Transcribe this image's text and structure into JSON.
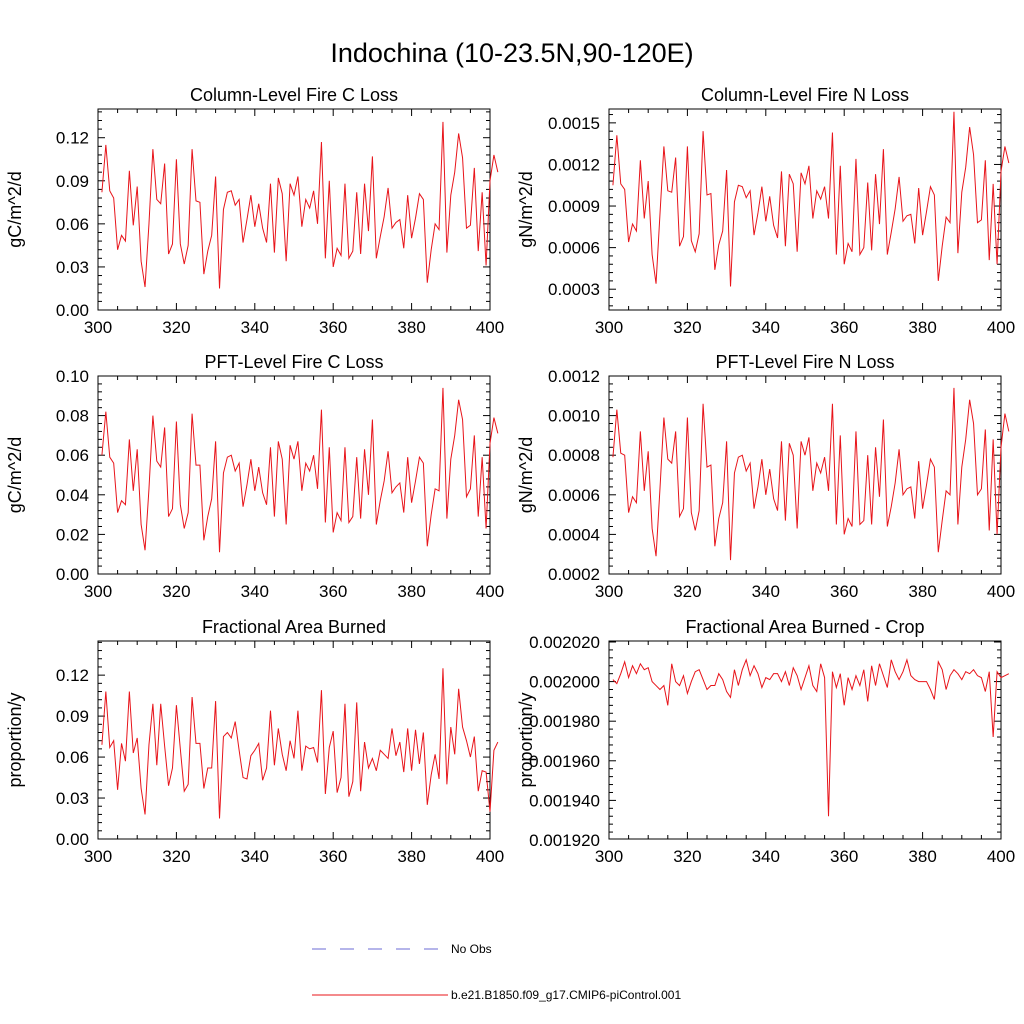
{
  "figure_title": "Indochina (10-23.5N,90-120E)",
  "legend": {
    "obs_label": "No Obs",
    "model_label": "b.e21.B1850.f09_g17.CMIP6-piControl.001",
    "obs_color": "#6b6bd6",
    "model_color": "#e8141a"
  },
  "chart_data": [
    {
      "type": "line",
      "title": "Column-Level Fire C Loss",
      "ylabel": "gC/m^2/d",
      "xlim": [
        300,
        400
      ],
      "ylim": [
        0,
        0.14
      ],
      "xticks": [
        300,
        320,
        340,
        360,
        380,
        400
      ],
      "yticks": [
        0.0,
        0.03,
        0.06,
        0.09,
        0.12
      ],
      "ytick_labels": [
        "0.00",
        "0.03",
        "0.06",
        "0.09",
        "0.12"
      ],
      "x_start": 301,
      "series": [
        {
          "name": "b.e21.B1850.f09_g17.CMIP6-piControl.001",
          "values": [
            0.082,
            0.115,
            0.083,
            0.078,
            0.042,
            0.052,
            0.048,
            0.097,
            0.059,
            0.086,
            0.034,
            0.016,
            0.06,
            0.112,
            0.077,
            0.074,
            0.102,
            0.039,
            0.046,
            0.105,
            0.046,
            0.032,
            0.045,
            0.112,
            0.076,
            0.075,
            0.025,
            0.041,
            0.052,
            0.093,
            0.015,
            0.07,
            0.082,
            0.083,
            0.073,
            0.077,
            0.047,
            0.063,
            0.08,
            0.058,
            0.074,
            0.057,
            0.047,
            0.088,
            0.04,
            0.092,
            0.081,
            0.034,
            0.088,
            0.08,
            0.093,
            0.058,
            0.077,
            0.071,
            0.083,
            0.06,
            0.117,
            0.036,
            0.09,
            0.03,
            0.043,
            0.038,
            0.088,
            0.036,
            0.041,
            0.082,
            0.039,
            0.088,
            0.055,
            0.107,
            0.036,
            0.051,
            0.065,
            0.085,
            0.057,
            0.061,
            0.063,
            0.043,
            0.08,
            0.05,
            0.064,
            0.081,
            0.077,
            0.019,
            0.042,
            0.06,
            0.056,
            0.131,
            0.04,
            0.08,
            0.096,
            0.123,
            0.106,
            0.057,
            0.059,
            0.099,
            0.041,
            0.082,
            0.031,
            0.09,
            0.108,
            0.096
          ]
        }
      ]
    },
    {
      "type": "line",
      "title": "Column-Level Fire N Loss",
      "ylabel": "gN/m^2/d",
      "xlim": [
        300,
        400
      ],
      "ylim": [
        0.00015,
        0.0016
      ],
      "xticks": [
        300,
        320,
        340,
        360,
        380,
        400
      ],
      "yticks": [
        0.0003,
        0.0006,
        0.0009,
        0.0012,
        0.0015
      ],
      "ytick_labels": [
        "0.0003",
        "0.0006",
        "0.0009",
        "0.0012",
        "0.0015"
      ],
      "x_start": 301,
      "series": [
        {
          "name": "b.e21.B1850.f09_g17.CMIP6-piControl.001",
          "values": [
            0.00105,
            0.00141,
            0.00106,
            0.00102,
            0.00064,
            0.00077,
            0.00072,
            0.00123,
            0.00081,
            0.00108,
            0.00055,
            0.00034,
            0.00084,
            0.00133,
            0.00101,
            0.001,
            0.00125,
            0.00061,
            0.00068,
            0.00133,
            0.00065,
            0.00057,
            0.0007,
            0.00144,
            0.00098,
            0.00099,
            0.00044,
            0.00062,
            0.00072,
            0.00116,
            0.00032,
            0.00093,
            0.00105,
            0.00104,
            0.00096,
            0.00101,
            0.00069,
            0.00085,
            0.00104,
            0.00079,
            0.00097,
            0.00076,
            0.00067,
            0.00115,
            0.00061,
            0.00113,
            0.00106,
            0.00057,
            0.00114,
            0.00106,
            0.00119,
            0.00081,
            0.00101,
            0.00095,
            0.00104,
            0.00081,
            0.00143,
            0.00055,
            0.00119,
            0.00048,
            0.00063,
            0.00057,
            0.00124,
            0.00055,
            0.0006,
            0.00107,
            0.00058,
            0.00113,
            0.00077,
            0.00131,
            0.00055,
            0.00071,
            0.00088,
            0.00111,
            0.00079,
            0.00083,
            0.00084,
            0.00063,
            0.00103,
            0.00069,
            0.00086,
            0.00104,
            0.00098,
            0.00036,
            0.00061,
            0.00082,
            0.00078,
            0.00158,
            0.00056,
            0.001,
            0.00118,
            0.00147,
            0.00127,
            0.00078,
            0.0008,
            0.00123,
            0.00051,
            0.00106,
            0.00048,
            0.00115,
            0.00133,
            0.00121
          ]
        }
      ]
    },
    {
      "type": "line",
      "title": "PFT-Level Fire C Loss",
      "ylabel": "gC/m^2/d",
      "xlim": [
        300,
        400
      ],
      "ylim": [
        0,
        0.1
      ],
      "xticks": [
        300,
        320,
        340,
        360,
        380,
        400
      ],
      "yticks": [
        0.0,
        0.02,
        0.04,
        0.06,
        0.08,
        0.1
      ],
      "ytick_labels": [
        "0.00",
        "0.02",
        "0.04",
        "0.06",
        "0.08",
        "0.10"
      ],
      "x_start": 301,
      "series": [
        {
          "name": "b.e21.B1850.f09_g17.CMIP6-piControl.001",
          "values": [
            0.06,
            0.082,
            0.059,
            0.056,
            0.031,
            0.037,
            0.035,
            0.068,
            0.042,
            0.063,
            0.025,
            0.012,
            0.043,
            0.08,
            0.057,
            0.054,
            0.074,
            0.029,
            0.033,
            0.077,
            0.035,
            0.023,
            0.031,
            0.081,
            0.055,
            0.055,
            0.017,
            0.029,
            0.038,
            0.067,
            0.011,
            0.051,
            0.059,
            0.06,
            0.052,
            0.056,
            0.034,
            0.045,
            0.058,
            0.042,
            0.054,
            0.041,
            0.035,
            0.064,
            0.029,
            0.067,
            0.058,
            0.025,
            0.065,
            0.058,
            0.067,
            0.042,
            0.056,
            0.052,
            0.06,
            0.043,
            0.083,
            0.026,
            0.064,
            0.021,
            0.031,
            0.027,
            0.064,
            0.026,
            0.029,
            0.059,
            0.028,
            0.063,
            0.04,
            0.078,
            0.025,
            0.037,
            0.047,
            0.062,
            0.041,
            0.044,
            0.046,
            0.031,
            0.059,
            0.036,
            0.047,
            0.059,
            0.056,
            0.014,
            0.03,
            0.043,
            0.042,
            0.094,
            0.028,
            0.058,
            0.07,
            0.088,
            0.078,
            0.039,
            0.043,
            0.07,
            0.029,
            0.059,
            0.023,
            0.066,
            0.079,
            0.071
          ]
        }
      ]
    },
    {
      "type": "line",
      "title": "PFT-Level Fire N Loss",
      "ylabel": "gN/m^2/d",
      "xlim": [
        300,
        400
      ],
      "ylim": [
        0.0002,
        0.0012
      ],
      "xticks": [
        300,
        320,
        340,
        360,
        380,
        400
      ],
      "yticks": [
        0.0002,
        0.0004,
        0.0006,
        0.0008,
        0.001,
        0.0012
      ],
      "ytick_labels": [
        "0.0002",
        "0.0004",
        "0.0006",
        "0.0008",
        "0.0010",
        "0.0012"
      ],
      "x_start": 301,
      "series": [
        {
          "name": "b.e21.B1850.f09_g17.CMIP6-piControl.001",
          "values": [
            0.00079,
            0.00103,
            0.00081,
            0.0008,
            0.00051,
            0.00059,
            0.00056,
            0.00092,
            0.00062,
            0.00082,
            0.00043,
            0.00029,
            0.00063,
            0.00099,
            0.00078,
            0.00076,
            0.00092,
            0.00049,
            0.00053,
            0.00099,
            0.00051,
            0.00042,
            0.00052,
            0.00106,
            0.00074,
            0.00075,
            0.00034,
            0.00048,
            0.00056,
            0.00087,
            0.00027,
            0.00071,
            0.00079,
            0.0008,
            0.00072,
            0.00076,
            0.00053,
            0.00064,
            0.00078,
            0.0006,
            0.00073,
            0.00058,
            0.00052,
            0.00087,
            0.00047,
            0.00086,
            0.0008,
            0.00043,
            0.00087,
            0.0008,
            0.00089,
            0.00062,
            0.00076,
            0.00071,
            0.00079,
            0.00062,
            0.00106,
            0.00045,
            0.0009,
            0.0004,
            0.00048,
            0.00044,
            0.00092,
            0.00045,
            0.00047,
            0.0008,
            0.00045,
            0.00084,
            0.00059,
            0.00098,
            0.00044,
            0.00054,
            0.00066,
            0.00083,
            0.0006,
            0.00063,
            0.00064,
            0.00048,
            0.00077,
            0.00053,
            0.00065,
            0.00078,
            0.00074,
            0.00031,
            0.00047,
            0.00062,
            0.0006,
            0.00114,
            0.00045,
            0.00074,
            0.00088,
            0.00108,
            0.00096,
            0.0006,
            0.00063,
            0.00093,
            0.00042,
            0.00088,
            0.0004,
            0.00084,
            0.00101,
            0.00092
          ]
        }
      ]
    },
    {
      "type": "line",
      "title": "Fractional Area Burned",
      "ylabel": "proportion/y",
      "xlim": [
        300,
        400
      ],
      "ylim": [
        0,
        0.145
      ],
      "xticks": [
        300,
        320,
        340,
        360,
        380,
        400
      ],
      "yticks": [
        0.0,
        0.03,
        0.06,
        0.09,
        0.12
      ],
      "ytick_labels": [
        "0.00",
        "0.03",
        "0.06",
        "0.09",
        "0.12"
      ],
      "x_start": 301,
      "series": [
        {
          "name": "b.e21.B1850.f09_g17.CMIP6-piControl.001",
          "values": [
            0.069,
            0.108,
            0.067,
            0.072,
            0.036,
            0.07,
            0.057,
            0.108,
            0.063,
            0.074,
            0.037,
            0.018,
            0.069,
            0.099,
            0.054,
            0.099,
            0.068,
            0.039,
            0.052,
            0.098,
            0.066,
            0.035,
            0.04,
            0.104,
            0.07,
            0.07,
            0.037,
            0.052,
            0.052,
            0.101,
            0.015,
            0.075,
            0.078,
            0.074,
            0.086,
            0.065,
            0.045,
            0.044,
            0.061,
            0.065,
            0.07,
            0.043,
            0.052,
            0.094,
            0.054,
            0.081,
            0.062,
            0.05,
            0.072,
            0.059,
            0.094,
            0.05,
            0.068,
            0.066,
            0.067,
            0.056,
            0.109,
            0.033,
            0.067,
            0.079,
            0.034,
            0.045,
            0.099,
            0.031,
            0.042,
            0.1,
            0.035,
            0.071,
            0.052,
            0.059,
            0.05,
            0.065,
            0.062,
            0.059,
            0.081,
            0.061,
            0.071,
            0.049,
            0.081,
            0.05,
            0.08,
            0.055,
            0.078,
            0.025,
            0.047,
            0.062,
            0.044,
            0.125,
            0.04,
            0.082,
            0.062,
            0.11,
            0.082,
            0.072,
            0.06,
            0.075,
            0.035,
            0.05,
            0.049,
            0.02,
            0.065,
            0.071
          ]
        }
      ]
    },
    {
      "type": "line",
      "title": "Fractional Area Burned - Crop",
      "ylabel": "proportion/y",
      "xlim": [
        300,
        400
      ],
      "ylim": [
        0.0019205,
        0.0020205
      ],
      "xticks": [
        300,
        320,
        340,
        360,
        380,
        400
      ],
      "yticks": [
        0.00192,
        0.00194,
        0.00196,
        0.00198,
        0.002,
        0.00202
      ],
      "ytick_labels": [
        "0.001920",
        "0.001940",
        "0.001960",
        "0.001980",
        "0.002000",
        "0.002020"
      ],
      "x_start": 301,
      "series": [
        {
          "name": "b.e21.B1850.f09_g17.CMIP6-piControl.001",
          "values": [
            0.002001,
            0.001999,
            0.002004,
            0.00201,
            0.002002,
            0.002008,
            0.002004,
            0.002009,
            0.002006,
            0.002007,
            0.002,
            0.001998,
            0.001996,
            0.001998,
            0.001988,
            0.002009,
            0.002,
            0.001998,
            0.002003,
            0.001994,
            0.002,
            0.002005,
            0.002006,
            0.002001,
            0.001996,
            0.001998,
            0.001998,
            0.002004,
            0.002001,
            0.001995,
            0.001992,
            0.002006,
            0.001998,
            0.002006,
            0.002011,
            0.002003,
            0.002008,
            0.002004,
            0.001997,
            0.002002,
            0.002001,
            0.002004,
            0.002004,
            0.002,
            0.002005,
            0.001998,
            0.002007,
            0.002003,
            0.001996,
            0.002002,
            0.002008,
            0.001998,
            0.001995,
            0.002009,
            0.002002,
            0.001932,
            0.002005,
            0.001997,
            0.002004,
            0.001988,
            0.002002,
            0.001996,
            0.002003,
            0.001998,
            0.002006,
            0.00199,
            0.002008,
            0.001998,
            0.002009,
            0.002003,
            0.001997,
            0.002011,
            0.002005,
            0.002001,
            0.002005,
            0.002011,
            0.002003,
            0.002001,
            0.002,
            0.002,
            0.002,
            0.001996,
            0.001991,
            0.00201,
            0.002006,
            0.001996,
            0.002003,
            0.002006,
            0.002004,
            0.002001,
            0.002005,
            0.002004,
            0.002006,
            0.002003,
            0.002002,
            0.001995,
            0.002005,
            0.001972,
            0.002005,
            0.002002,
            0.002003,
            0.002004
          ]
        }
      ]
    }
  ]
}
